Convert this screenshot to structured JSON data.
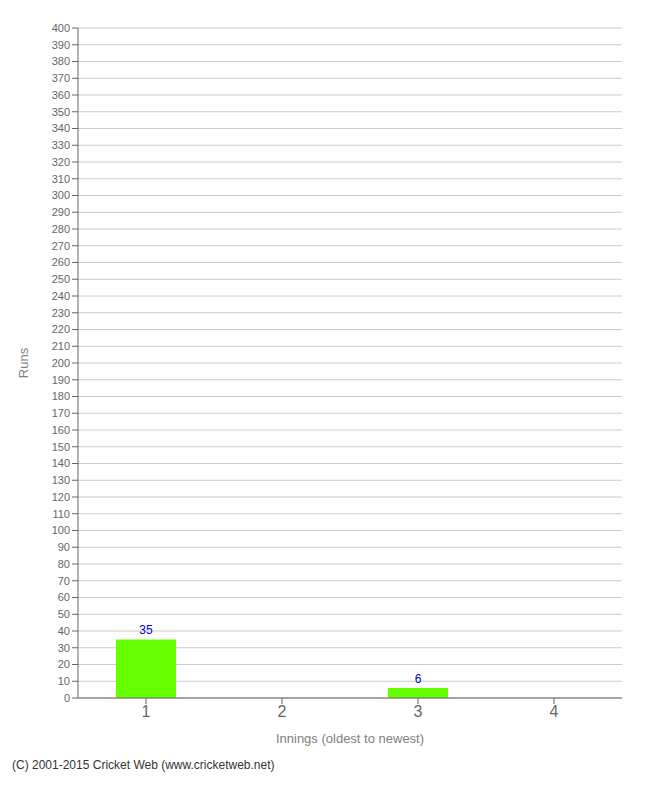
{
  "chart_data": {
    "type": "bar",
    "xlabel": "Innings (oldest to newest)",
    "ylabel": "Runs",
    "categories": [
      1,
      2,
      3,
      4
    ],
    "values": [
      35,
      0,
      6,
      0
    ],
    "color": "#66ff00",
    "ylim": [
      0,
      400
    ],
    "yticks": [
      0,
      10,
      20,
      30,
      40,
      50,
      60,
      70,
      80,
      90,
      100,
      110,
      120,
      130,
      140,
      150,
      160,
      170,
      180,
      190,
      200,
      210,
      220,
      230,
      240,
      250,
      260,
      270,
      280,
      290,
      300,
      310,
      320,
      330,
      340,
      350,
      360,
      370,
      380,
      390,
      400
    ],
    "grid": true,
    "data_labels": true,
    "annotations": [
      "(C) 2001-2015 Cricket Web (www.cricketweb.net)"
    ]
  }
}
